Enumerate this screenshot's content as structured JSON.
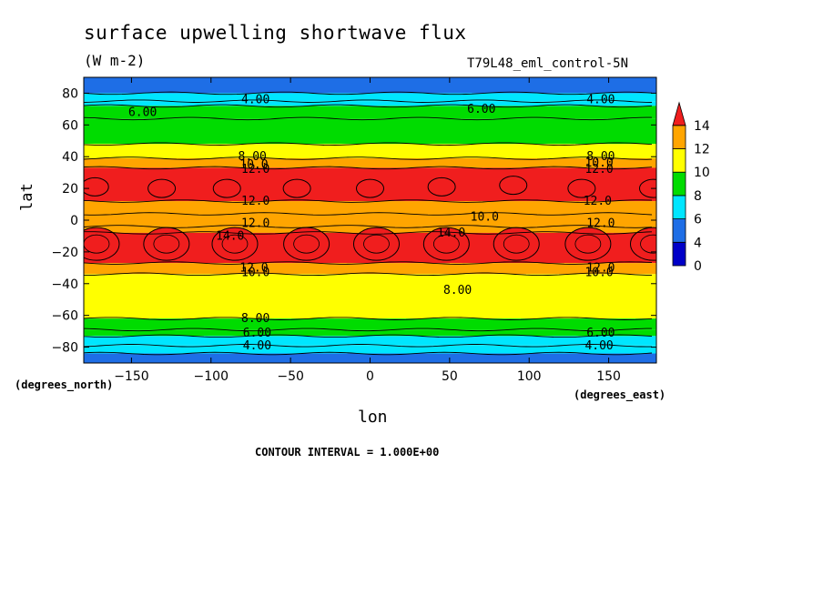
{
  "chart_data": {
    "type": "heatmap",
    "title": "surface upwelling shortwave flux",
    "units": "(W m-2)",
    "dataset_label": "T79L48_eml_control-5N",
    "xlabel": "lon",
    "ylabel": "lat",
    "x_units": "(degrees_east)",
    "y_units": "(degrees_north)",
    "xlim": [
      -180,
      180
    ],
    "ylim": [
      -90,
      90
    ],
    "x_ticks": [
      -150,
      -100,
      -50,
      0,
      50,
      100,
      150
    ],
    "y_ticks": [
      80,
      60,
      40,
      20,
      0,
      -20,
      -40,
      -60,
      -80
    ],
    "colorbar": {
      "levels": [
        0,
        2,
        4,
        6,
        8,
        10,
        12,
        14
      ],
      "tick_labels": [
        "0",
        "4",
        "6",
        "8",
        "10",
        "12",
        "14"
      ],
      "colors": [
        "#0000c8",
        "#1e6ee6",
        "#00e6ff",
        "#00dc00",
        "#ffff00",
        "#ffa500",
        "#f01e1e"
      ],
      "extend": "max"
    },
    "zonal_bands": [
      {
        "lat_from": 90,
        "lat_to": 80,
        "value": 3
      },
      {
        "lat_from": 80,
        "lat_to": 75,
        "value": 4
      },
      {
        "lat_from": 75,
        "lat_to": 72,
        "value": 5
      },
      {
        "lat_from": 72,
        "lat_to": 64,
        "value": 6
      },
      {
        "lat_from": 64,
        "lat_to": 48,
        "value": 7
      },
      {
        "lat_from": 48,
        "lat_to": 39,
        "value": 8
      },
      {
        "lat_from": 39,
        "lat_to": 33,
        "value": 10
      },
      {
        "lat_from": 33,
        "lat_to": 12,
        "value": 12
      },
      {
        "lat_from": 12,
        "lat_to": 4,
        "value": 11
      },
      {
        "lat_from": 4,
        "lat_to": -4,
        "value": 10
      },
      {
        "lat_from": -4,
        "lat_to": -8,
        "value": 11
      },
      {
        "lat_from": -8,
        "lat_to": -27,
        "value": 13
      },
      {
        "lat_from": -27,
        "lat_to": -34,
        "value": 10
      },
      {
        "lat_from": -34,
        "lat_to": -62,
        "value": 9
      },
      {
        "lat_from": -62,
        "lat_to": -69,
        "value": 7
      },
      {
        "lat_from": -69,
        "lat_to": -73,
        "value": 6
      },
      {
        "lat_from": -73,
        "lat_to": -79,
        "value": 5
      },
      {
        "lat_from": -79,
        "lat_to": -84,
        "value": 4
      },
      {
        "lat_from": -84,
        "lat_to": -90,
        "value": 3
      }
    ],
    "cells_north_14": [
      {
        "lon": -173,
        "lat": 21
      },
      {
        "lon": -131,
        "lat": 20
      },
      {
        "lon": -90,
        "lat": 20
      },
      {
        "lon": -46,
        "lat": 20
      },
      {
        "lon": 0,
        "lat": 20
      },
      {
        "lon": 45,
        "lat": 21
      },
      {
        "lon": 90,
        "lat": 22
      },
      {
        "lon": 133,
        "lat": 20
      },
      {
        "lon": 178,
        "lat": 20
      }
    ],
    "cells_south_14": [
      {
        "lon": -172,
        "lat": -15
      },
      {
        "lon": -128,
        "lat": -15
      },
      {
        "lon": -85,
        "lat": -15
      },
      {
        "lon": -40,
        "lat": -15
      },
      {
        "lon": 4,
        "lat": -15
      },
      {
        "lon": 48,
        "lat": -15
      },
      {
        "lon": 92,
        "lat": -15
      },
      {
        "lon": 137,
        "lat": -15
      },
      {
        "lon": 178,
        "lat": -15
      }
    ],
    "contour_labels": [
      {
        "text": "4.00",
        "lon": -72,
        "lat": 76
      },
      {
        "text": "4.00",
        "lon": 145,
        "lat": 76
      },
      {
        "text": "6.00",
        "lon": -143,
        "lat": 68
      },
      {
        "text": "6.00",
        "lon": 70,
        "lat": 70
      },
      {
        "text": "8.00",
        "lon": -74,
        "lat": 40
      },
      {
        "text": "8.00",
        "lon": 145,
        "lat": 40
      },
      {
        "text": "10.0",
        "lon": -73,
        "lat": 35
      },
      {
        "text": "10.0",
        "lon": 144,
        "lat": 36
      },
      {
        "text": "12.0",
        "lon": -72,
        "lat": 32
      },
      {
        "text": "12.0",
        "lon": 144,
        "lat": 32
      },
      {
        "text": "12.0",
        "lon": -72,
        "lat": 12
      },
      {
        "text": "12.0",
        "lon": 143,
        "lat": 12
      },
      {
        "text": "10.0",
        "lon": 72,
        "lat": 2
      },
      {
        "text": "12.0",
        "lon": -72,
        "lat": -2
      },
      {
        "text": "12.0",
        "lon": 145,
        "lat": -2
      },
      {
        "text": "14.0",
        "lon": -88,
        "lat": -10
      },
      {
        "text": "14.0",
        "lon": 51,
        "lat": -8
      },
      {
        "text": "12.0",
        "lon": -73,
        "lat": -30
      },
      {
        "text": "12.0",
        "lon": 145,
        "lat": -30
      },
      {
        "text": "10.0",
        "lon": -72,
        "lat": -33
      },
      {
        "text": "10.0",
        "lon": 144,
        "lat": -33
      },
      {
        "text": "8.00",
        "lon": 55,
        "lat": -44
      },
      {
        "text": "8.00",
        "lon": -72,
        "lat": -62
      },
      {
        "text": "6.00",
        "lon": -71,
        "lat": -71
      },
      {
        "text": "6.00",
        "lon": 145,
        "lat": -71
      },
      {
        "text": "4.00",
        "lon": -71,
        "lat": -79
      },
      {
        "text": "4.00",
        "lon": 144,
        "lat": -79
      }
    ],
    "grid": false
  },
  "footer": "CONTOUR INTERVAL = 1.000E+00"
}
